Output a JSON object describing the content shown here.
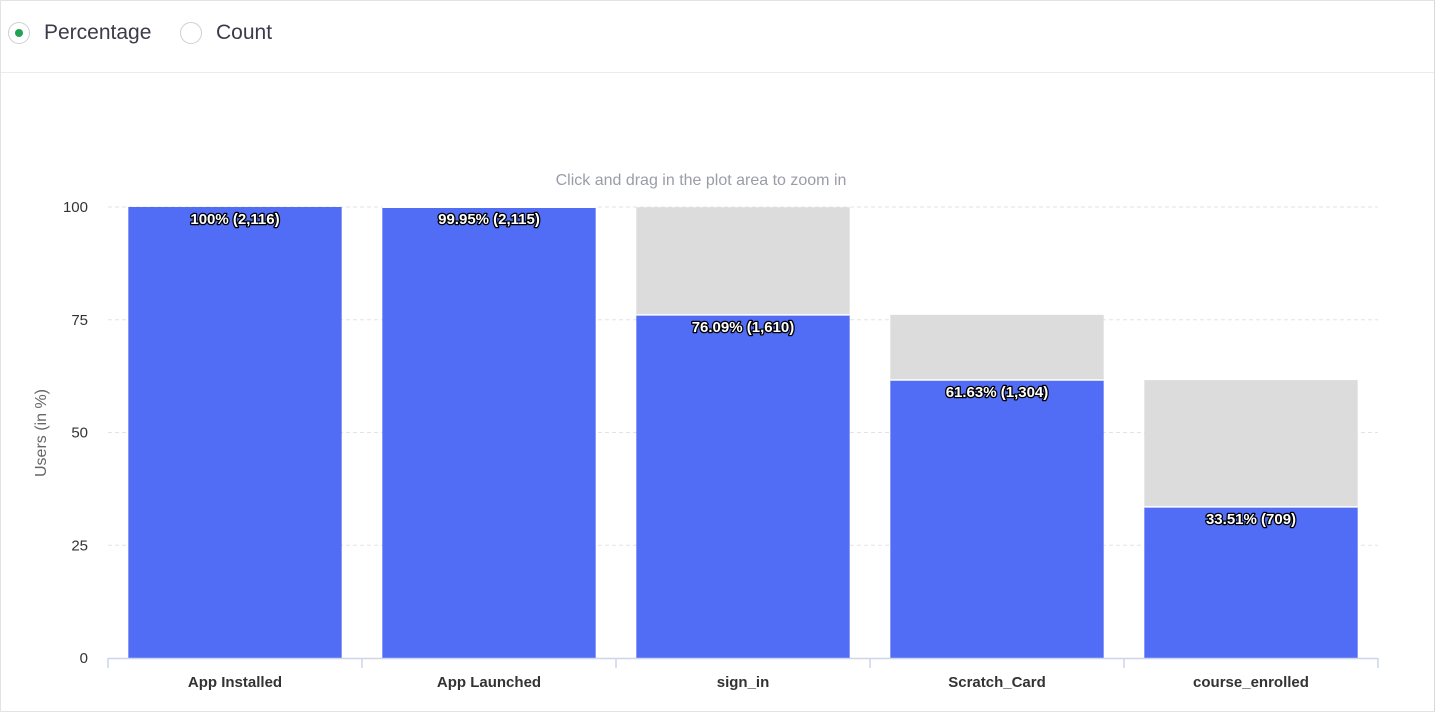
{
  "view_toggle": {
    "options": [
      {
        "label": "Percentage",
        "selected": true
      },
      {
        "label": "Count",
        "selected": false
      }
    ],
    "selected_color": "#23a455"
  },
  "chart_data": {
    "type": "bar",
    "subtitle": "Click and drag in the plot area to zoom in",
    "ylabel": "Users (in %)",
    "xlabel": "",
    "ylim": [
      0,
      100
    ],
    "yticks": [
      0,
      25,
      50,
      75,
      100
    ],
    "grid": true,
    "categories": [
      "App Installed",
      "App Launched",
      "sign_in",
      "Scratch_Card",
      "course_enrolled"
    ],
    "series": [
      {
        "name": "",
        "color": "#516cf5",
        "values": [
          100,
          99.95,
          76.09,
          61.63,
          33.51
        ],
        "counts": [
          2116,
          2115,
          1610,
          1304,
          709
        ]
      },
      {
        "name": "",
        "color": "#dcdcdc",
        "values": [
          0,
          0.05,
          23.86,
          14.46,
          28.12
        ]
      }
    ],
    "data_labels": [
      "100% (2,116)",
      "99.95% (2,115)",
      "76.09% (1,610)",
      "61.63% (1,304)",
      "33.51% (709)"
    ]
  }
}
